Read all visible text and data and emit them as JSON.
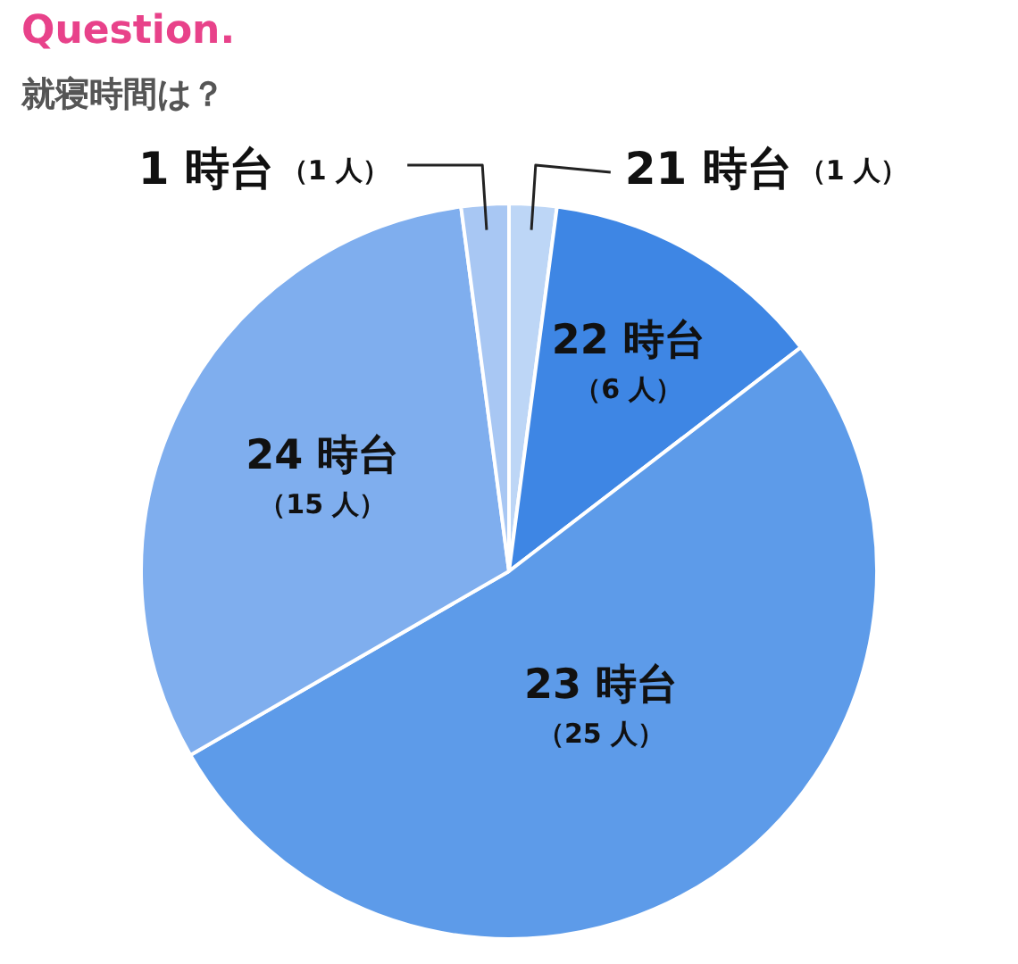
{
  "chart_data": {
    "type": "pie",
    "title": "Question.",
    "subtitle": "就寝時間は？",
    "categories": [
      "21 時台",
      "22 時台",
      "23 時台",
      "24 時台",
      "1 時台"
    ],
    "values": [
      1,
      6,
      25,
      15,
      1
    ],
    "colors": [
      "#bdd6f6",
      "#3e86e4",
      "#5d9be9",
      "#7faeee",
      "#a8c7f3"
    ],
    "value_labels": [
      "（1 人）",
      "（6 人）",
      "（25 人）",
      "（15 人）",
      "（1 人）"
    ]
  }
}
